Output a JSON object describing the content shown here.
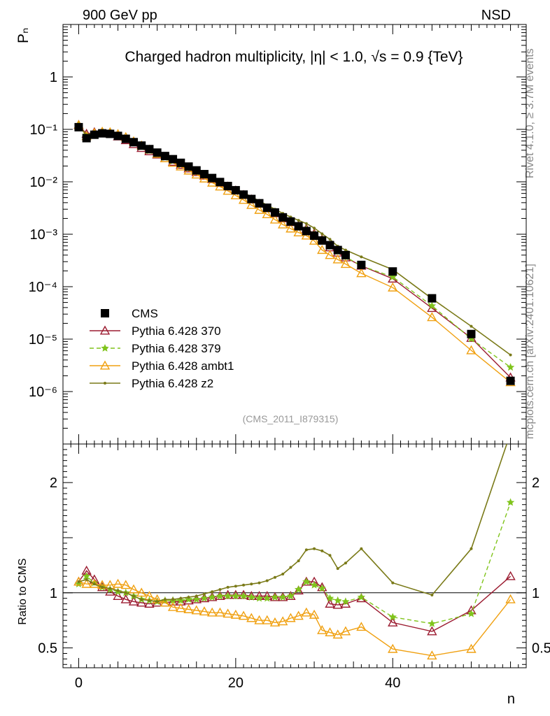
{
  "header": {
    "left": "900 GeV pp",
    "right": "NSD"
  },
  "title": "Charged hadron multiplicity, |η| < 1.0, √s = 0.9 {TeV}",
  "side_labels": {
    "rivet": "Rivet 4.1.0, ≥ 3.7M events",
    "mcplots": "mcplots.cern.ch [arXiv:2401.10621]"
  },
  "analysis_id": "(CMS_2011_I879315)",
  "colors": {
    "CMS": "#000000",
    "p370": "#9b1b30",
    "p379": "#80c41c",
    "ambt1": "#f0a010",
    "z2": "#7a7a18"
  },
  "chart_data": [
    {
      "type": "scatter",
      "yscale": "log",
      "ylabel": "Pₙ",
      "xlim": [
        -2,
        57
      ],
      "ylim": [
        1e-07,
        10
      ],
      "ytick_labels": [
        "10⁻⁶",
        "10⁻⁵",
        "10⁻⁴",
        "10⁻³",
        "10⁻²",
        "10⁻¹",
        "1"
      ],
      "ytick_values": [
        1e-06,
        1e-05,
        0.0001,
        0.001,
        0.01,
        0.1,
        1
      ],
      "legend_position": "lower-left",
      "x": [
        0,
        1,
        2,
        3,
        4,
        5,
        6,
        7,
        8,
        9,
        10,
        11,
        12,
        13,
        14,
        15,
        16,
        17,
        18,
        19,
        20,
        21,
        22,
        23,
        24,
        25,
        26,
        27,
        28,
        29,
        30,
        31,
        32,
        33,
        34,
        36,
        40,
        45,
        50,
        55
      ],
      "series": [
        {
          "name": "CMS",
          "key": "CMS",
          "marker": "square",
          "values": [
            0.11,
            0.068,
            0.079,
            0.084,
            0.082,
            0.075,
            0.066,
            0.057,
            0.049,
            0.042,
            0.036,
            0.031,
            0.027,
            0.023,
            0.0195,
            0.0165,
            0.014,
            0.0118,
            0.0099,
            0.0083,
            0.0069,
            0.0057,
            0.0047,
            0.0039,
            0.0032,
            0.0026,
            0.0021,
            0.00175,
            0.00142,
            0.00115,
            0.00094,
            0.00076,
            0.00062,
            0.0005,
            0.0004,
            0.00026,
            0.000195,
            6e-05,
            1.25e-05,
            1.6e-06
          ]
        },
        {
          "name": "Pythia 6.428 370",
          "key": "p370",
          "marker": "triangle",
          "values": [
            0.121,
            0.082,
            0.088,
            0.088,
            0.083,
            0.073,
            0.062,
            0.052,
            0.044,
            0.038,
            0.033,
            0.028,
            0.024,
            0.021,
            0.0179,
            0.0153,
            0.0131,
            0.0112,
            0.0095,
            0.0081,
            0.0068,
            0.0056,
            0.0046,
            0.0038,
            0.0031,
            0.0025,
            0.002,
            0.0017,
            0.00145,
            0.00127,
            0.00103,
            0.0008,
            0.00056,
            0.000445,
            0.00036,
            0.00025,
            0.000142,
            3.9e-05,
            1.05e-05,
            1.85e-06
          ]
        },
        {
          "name": "Pythia 6.428 379",
          "key": "p379",
          "marker": "star",
          "values": [
            0.119,
            0.078,
            0.086,
            0.088,
            0.085,
            0.076,
            0.066,
            0.055,
            0.046,
            0.039,
            0.033,
            0.029,
            0.025,
            0.021,
            0.0183,
            0.0155,
            0.0133,
            0.0113,
            0.0096,
            0.0081,
            0.0067,
            0.0055,
            0.0045,
            0.0037,
            0.003,
            0.0025,
            0.002,
            0.0017,
            0.00146,
            0.00126,
            0.001,
            0.0008,
            0.00059,
            0.000465,
            0.00037,
            0.00025,
            0.000153,
            4.32e-05,
            1.01e-05,
            2.9e-06
          ]
        },
        {
          "name": "Pythia 6.428 ambt1",
          "key": "ambt1",
          "marker": "triangle",
          "values": [
            0.121,
            0.074,
            0.085,
            0.09,
            0.088,
            0.081,
            0.071,
            0.059,
            0.049,
            0.041,
            0.034,
            0.028,
            0.023,
            0.0195,
            0.0163,
            0.0137,
            0.0115,
            0.0096,
            0.0081,
            0.0067,
            0.0055,
            0.0045,
            0.0036,
            0.0029,
            0.0024,
            0.0019,
            0.00153,
            0.00128,
            0.00108,
            0.00094,
            0.00075,
            0.0005,
            0.0004,
            0.00033,
            0.00027,
            0.00018,
            9.6e-05,
            2.61e-05,
            6.1e-06,
            1.5e-06
          ]
        },
        {
          "name": "Pythia 6.428 z2",
          "key": "z2",
          "marker": "dot",
          "values": [
            0.121,
            0.076,
            0.085,
            0.088,
            0.085,
            0.076,
            0.066,
            0.055,
            0.046,
            0.039,
            0.033,
            0.029,
            0.025,
            0.022,
            0.0188,
            0.0161,
            0.0138,
            0.012,
            0.0103,
            0.0088,
            0.0074,
            0.0062,
            0.0052,
            0.0043,
            0.0036,
            0.003,
            0.0025,
            0.00213,
            0.00184,
            0.0016,
            0.00131,
            0.00102,
            0.0008,
            0.00059,
            0.0005,
            0.00037,
            0.000212,
            5.9e-05,
            1.76e-05,
            5e-06
          ]
        }
      ]
    },
    {
      "type": "line",
      "ylabel": "Ratio to CMS",
      "xlabel": "n",
      "xlim": [
        -2,
        57
      ],
      "ylim": [
        0.32,
        2.35
      ],
      "xtick_values": [
        0,
        20,
        40
      ],
      "xtick_labels": [
        "0",
        "20",
        "40"
      ],
      "ytick_values": [
        0.5,
        1,
        2
      ],
      "ytick_labels": [
        "0.5",
        "1",
        "2"
      ],
      "reference_line": 1,
      "x": [
        0,
        1,
        2,
        3,
        4,
        5,
        6,
        7,
        8,
        9,
        10,
        11,
        12,
        13,
        14,
        15,
        16,
        17,
        18,
        19,
        20,
        21,
        22,
        23,
        24,
        25,
        26,
        27,
        28,
        29,
        30,
        31,
        32,
        33,
        34,
        36,
        40,
        45,
        50,
        55
      ],
      "series": [
        {
          "name": "Pythia 6.428 370",
          "key": "p370",
          "values": [
            1.1,
            1.2,
            1.12,
            1.05,
            1.01,
            0.97,
            0.94,
            0.92,
            0.91,
            0.9,
            0.91,
            0.91,
            0.92,
            0.92,
            0.93,
            0.94,
            0.95,
            0.96,
            0.97,
            0.98,
            0.98,
            0.98,
            0.97,
            0.97,
            0.97,
            0.96,
            0.96,
            0.97,
            1.02,
            1.1,
            1.1,
            1.05,
            0.9,
            0.89,
            0.9,
            0.95,
            0.73,
            0.65,
            0.84,
            1.15
          ]
        },
        {
          "name": "Pythia 6.428 379",
          "key": "p379",
          "values": [
            1.08,
            1.15,
            1.09,
            1.05,
            1.03,
            1.01,
            1.0,
            0.97,
            0.94,
            0.93,
            0.92,
            0.93,
            0.93,
            0.93,
            0.94,
            0.94,
            0.95,
            0.96,
            0.97,
            0.97,
            0.97,
            0.97,
            0.96,
            0.95,
            0.95,
            0.96,
            0.96,
            0.97,
            1.03,
            1.1,
            1.07,
            1.04,
            0.95,
            0.93,
            0.92,
            0.96,
            0.78,
            0.72,
            0.81,
            1.82
          ]
        },
        {
          "name": "Pythia 6.428 ambt1",
          "key": "ambt1",
          "values": [
            1.1,
            1.08,
            1.08,
            1.07,
            1.07,
            1.08,
            1.07,
            1.03,
            1.0,
            0.97,
            0.94,
            0.91,
            0.87,
            0.86,
            0.85,
            0.84,
            0.83,
            0.82,
            0.82,
            0.81,
            0.8,
            0.79,
            0.77,
            0.75,
            0.75,
            0.73,
            0.74,
            0.77,
            0.79,
            0.82,
            0.8,
            0.66,
            0.64,
            0.62,
            0.65,
            0.69,
            0.49,
            0.43,
            0.49,
            0.94
          ]
        },
        {
          "name": "Pythia 6.428 z2",
          "key": "z2",
          "values": [
            1.1,
            1.12,
            1.08,
            1.05,
            1.04,
            1.02,
            1.0,
            0.97,
            0.94,
            0.93,
            0.92,
            0.94,
            0.94,
            0.95,
            0.96,
            0.97,
            0.99,
            1.01,
            1.03,
            1.05,
            1.06,
            1.07,
            1.08,
            1.09,
            1.11,
            1.14,
            1.17,
            1.23,
            1.29,
            1.39,
            1.4,
            1.38,
            1.34,
            1.22,
            1.27,
            1.4,
            1.09,
            0.98,
            1.4,
            2.45
          ]
        }
      ]
    }
  ]
}
